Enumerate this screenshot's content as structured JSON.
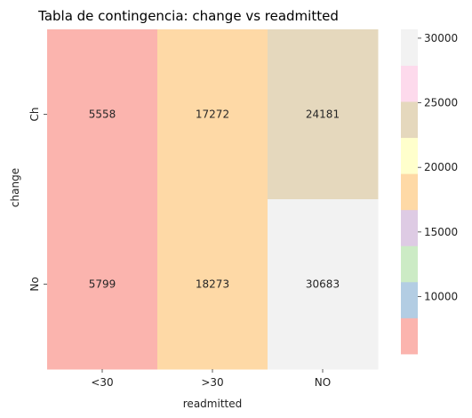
{
  "chart_data": {
    "type": "heatmap",
    "title": "Tabla de contingencia: change vs readmitted",
    "xlabel": "readmitted",
    "ylabel": "change",
    "x_categories": [
      "<30",
      ">30",
      "NO"
    ],
    "y_categories": [
      "Ch",
      "No"
    ],
    "values": [
      [
        5558,
        17272,
        24181
      ],
      [
        5799,
        18273,
        30683
      ]
    ],
    "annotations": [
      "5558",
      "17272",
      "24181",
      "5799",
      "18273",
      "30683"
    ],
    "colorbar": {
      "ticks": [
        10000,
        15000,
        20000,
        25000,
        30000
      ],
      "tick_labels": [
        "10000",
        "15000",
        "20000",
        "25000",
        "30000"
      ],
      "vmin": 5558,
      "vmax": 30683,
      "palette": [
        "#fbb4ae",
        "#b3cde3",
        "#ccebc5",
        "#decbe4",
        "#fed9a6",
        "#ffffcc",
        "#e5d8bd",
        "#fddaec",
        "#f2f2f2"
      ]
    }
  }
}
